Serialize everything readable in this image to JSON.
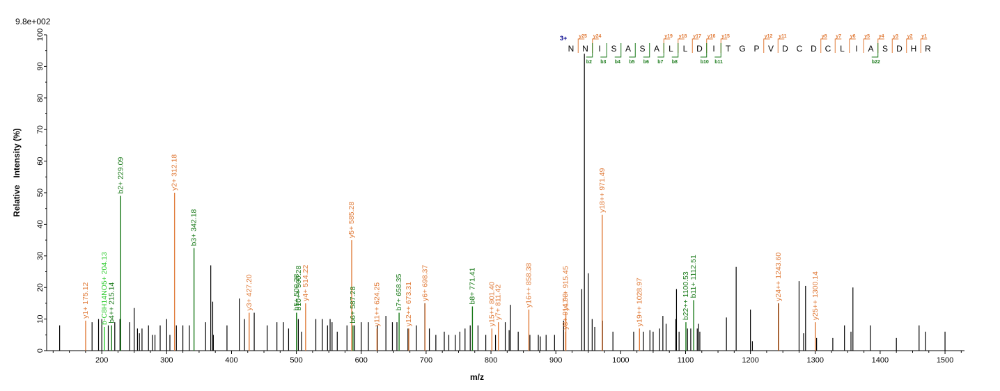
{
  "chart_data": {
    "type": "bar",
    "scale_label": "9.8e+002",
    "xlabel": "m/z",
    "ylabel": "Relative   Intensity (%)",
    "xlim": [
      115,
      1530
    ],
    "ylim": [
      0,
      100
    ],
    "x_ticks": [
      100,
      200,
      300,
      400,
      500,
      600,
      700,
      800,
      900,
      1000,
      1100,
      1200,
      1300,
      1400,
      1500
    ],
    "y_ticks": [
      0,
      10,
      20,
      30,
      40,
      50,
      60,
      70,
      80,
      90,
      100
    ],
    "colors": {
      "y": "#e07b39",
      "b": "#1a7a1a",
      "other": "#33cc33",
      "unassigned": "#000000",
      "charge": "#00008b"
    },
    "unassigned_peaks": [
      [
        135,
        8
      ],
      [
        185,
        9
      ],
      [
        195,
        10
      ],
      [
        200,
        10
      ],
      [
        210,
        8
      ],
      [
        220,
        9
      ],
      [
        228,
        10
      ],
      [
        243,
        9
      ],
      [
        250,
        13.5
      ],
      [
        255,
        7
      ],
      [
        258,
        5.5
      ],
      [
        262,
        7
      ],
      [
        272,
        8
      ],
      [
        278,
        5
      ],
      [
        282,
        5
      ],
      [
        290,
        8
      ],
      [
        300,
        10
      ],
      [
        305,
        5
      ],
      [
        315,
        8
      ],
      [
        325,
        8
      ],
      [
        335,
        8
      ],
      [
        360,
        9
      ],
      [
        368,
        27
      ],
      [
        371,
        15.5
      ],
      [
        372,
        5
      ],
      [
        393,
        8
      ],
      [
        412,
        16.5
      ],
      [
        420,
        10
      ],
      [
        435,
        12
      ],
      [
        455,
        8
      ],
      [
        470,
        9
      ],
      [
        480,
        9
      ],
      [
        488,
        7
      ],
      [
        503,
        10
      ],
      [
        508,
        6
      ],
      [
        530,
        10
      ],
      [
        540,
        10
      ],
      [
        548,
        8
      ],
      [
        552,
        10
      ],
      [
        555,
        9
      ],
      [
        563,
        6
      ],
      [
        578,
        8
      ],
      [
        590,
        8
      ],
      [
        600,
        9
      ],
      [
        611,
        9
      ],
      [
        625,
        8
      ],
      [
        638,
        11
      ],
      [
        648,
        9
      ],
      [
        655,
        9
      ],
      [
        672,
        7
      ],
      [
        685,
        8
      ],
      [
        698,
        15
      ],
      [
        705,
        7
      ],
      [
        715,
        5
      ],
      [
        728,
        6
      ],
      [
        735,
        5
      ],
      [
        745,
        5
      ],
      [
        752,
        6
      ],
      [
        760,
        7
      ],
      [
        768,
        8
      ],
      [
        780,
        8
      ],
      [
        792,
        5
      ],
      [
        807,
        5
      ],
      [
        822,
        9
      ],
      [
        828,
        6.5
      ],
      [
        830,
        14.5
      ],
      [
        842,
        6
      ],
      [
        860,
        5
      ],
      [
        873,
        5
      ],
      [
        876,
        4.5
      ],
      [
        885,
        5
      ],
      [
        898,
        5
      ],
      [
        912,
        9.5
      ],
      [
        940,
        19.5
      ],
      [
        944,
        94
      ],
      [
        950,
        24.5
      ],
      [
        956,
        10
      ],
      [
        960,
        7.5
      ],
      [
        972,
        9.5
      ],
      [
        988,
        6
      ],
      [
        1020,
        6
      ],
      [
        1035,
        6
      ],
      [
        1045,
        6.5
      ],
      [
        1050,
        6
      ],
      [
        1060,
        7
      ],
      [
        1065,
        11
      ],
      [
        1070,
        8.5
      ],
      [
        1085,
        10
      ],
      [
        1086,
        19.5
      ],
      [
        1090,
        6
      ],
      [
        1103,
        7
      ],
      [
        1108,
        7
      ],
      [
        1118,
        7
      ],
      [
        1120,
        8.5
      ],
      [
        1122,
        6
      ],
      [
        1163,
        10.5
      ],
      [
        1178,
        26.5
      ],
      [
        1200,
        13
      ],
      [
        1203,
        3
      ],
      [
        1243,
        15
      ],
      [
        1275,
        22
      ],
      [
        1282,
        5.5
      ],
      [
        1285,
        20.5
      ],
      [
        1302,
        4
      ],
      [
        1327,
        4
      ],
      [
        1345,
        8
      ],
      [
        1355,
        6
      ],
      [
        1358,
        20
      ],
      [
        1385,
        8
      ],
      [
        1425,
        4
      ],
      [
        1460,
        8
      ],
      [
        1470,
        6
      ],
      [
        1500,
        6
      ]
    ],
    "annotated_peaks": [
      {
        "x": 175.12,
        "y": 9.5,
        "label": "y1+ 175.12",
        "series": "y"
      },
      {
        "x": 204.13,
        "y": 7.5,
        "label": "b-C8H14NO5+ 204.13",
        "series": "other"
      },
      {
        "x": 215.14,
        "y": 8,
        "label": "b4++ 215.14",
        "series": "b"
      },
      {
        "x": 229.09,
        "y": 49,
        "label": "b2+ 229.09",
        "series": "b"
      },
      {
        "x": 312.18,
        "y": 50,
        "label": "y2+ 312.18",
        "series": "y"
      },
      {
        "x": 342.18,
        "y": 32.5,
        "label": "b3+ 342.18",
        "series": "b"
      },
      {
        "x": 427.2,
        "y": 12,
        "label": "y3+ 427.20",
        "series": "y"
      },
      {
        "x": 500.28,
        "y": 12,
        "label": "b5+ 500.28",
        "series": "b"
      },
      {
        "x": 500.28,
        "y": 12,
        "label": "b10++ 500.28",
        "series": "b",
        "offset": true
      },
      {
        "x": 514.22,
        "y": 15,
        "label": "y4+ 514.22",
        "series": "y"
      },
      {
        "x": 585.28,
        "y": 35,
        "label": "y5+ 585.28",
        "series": "y"
      },
      {
        "x": 587.28,
        "y": 8,
        "label": "b6+ 587.28",
        "series": "b"
      },
      {
        "x": 624.25,
        "y": 7,
        "label": "y11++ 624.25",
        "series": "y"
      },
      {
        "x": 658.35,
        "y": 12,
        "label": "b7+ 658.35",
        "series": "b"
      },
      {
        "x": 673.31,
        "y": 7,
        "label": "y12++ 673.31",
        "series": "y"
      },
      {
        "x": 698.37,
        "y": 15,
        "label": "y6+ 698.37",
        "series": "y"
      },
      {
        "x": 771.41,
        "y": 14,
        "label": "b8+ 771.41",
        "series": "b"
      },
      {
        "x": 801.4,
        "y": 7,
        "label": "y15++ 801.40",
        "series": "y"
      },
      {
        "x": 811.42,
        "y": 9,
        "label": "y7+ 811.42",
        "series": "y"
      },
      {
        "x": 858.38,
        "y": 13,
        "label": "y16++ 858.38",
        "series": "y"
      },
      {
        "x": 914.93,
        "y": 6,
        "label": "y8+ 914.93",
        "series": "y"
      },
      {
        "x": 915.45,
        "y": 12,
        "label": "y17++ 915.45",
        "series": "y"
      },
      {
        "x": 971.49,
        "y": 43,
        "label": "y18++ 971.49",
        "series": "y"
      },
      {
        "x": 1028.97,
        "y": 7,
        "label": "y19++ 1028.97",
        "series": "y"
      },
      {
        "x": 1100.53,
        "y": 9,
        "label": "b22++ 1100.53",
        "series": "b"
      },
      {
        "x": 1112.51,
        "y": 16,
        "label": "b11+ 1112.51",
        "series": "b"
      },
      {
        "x": 1243.6,
        "y": 15,
        "label": "y24++ 1243.60",
        "series": "y"
      },
      {
        "x": 1300.14,
        "y": 9,
        "label": "y25++ 1300.14",
        "series": "y"
      }
    ],
    "sequence": {
      "charge": "3+",
      "residues": [
        "N",
        "N",
        "I",
        "S",
        "A",
        "S",
        "A",
        "L",
        "L",
        "D",
        "I",
        "T",
        "G",
        "P",
        "V",
        "D",
        "C",
        "D",
        "C",
        "L",
        "I",
        "A",
        "S",
        "D",
        "H",
        "R"
      ],
      "y_ions": [
        {
          "after": 1,
          "label": "y25"
        },
        {
          "after": 2,
          "label": "y24"
        },
        {
          "after": 7,
          "label": "y19"
        },
        {
          "after": 8,
          "label": "y18"
        },
        {
          "after": 9,
          "label": "y17"
        },
        {
          "after": 10,
          "label": "y16"
        },
        {
          "after": 11,
          "label": "y15"
        },
        {
          "after": 14,
          "label": "y12"
        },
        {
          "after": 15,
          "label": "y11"
        },
        {
          "after": 18,
          "label": "y8"
        },
        {
          "after": 19,
          "label": "y7"
        },
        {
          "after": 20,
          "label": "y6"
        },
        {
          "after": 21,
          "label": "y5"
        },
        {
          "after": 22,
          "label": "y4"
        },
        {
          "after": 23,
          "label": "y3"
        },
        {
          "after": 24,
          "label": "y2"
        },
        {
          "after": 25,
          "label": "y1"
        }
      ],
      "b_ions": [
        {
          "after": 2,
          "label": "b2"
        },
        {
          "after": 3,
          "label": "b3"
        },
        {
          "after": 4,
          "label": "b4"
        },
        {
          "after": 5,
          "label": "b5"
        },
        {
          "after": 6,
          "label": "b6"
        },
        {
          "after": 7,
          "label": "b7"
        },
        {
          "after": 8,
          "label": "b8"
        },
        {
          "after": 10,
          "label": "b10"
        },
        {
          "after": 11,
          "label": "b11"
        },
        {
          "after": 22,
          "label": "b22"
        }
      ]
    }
  }
}
